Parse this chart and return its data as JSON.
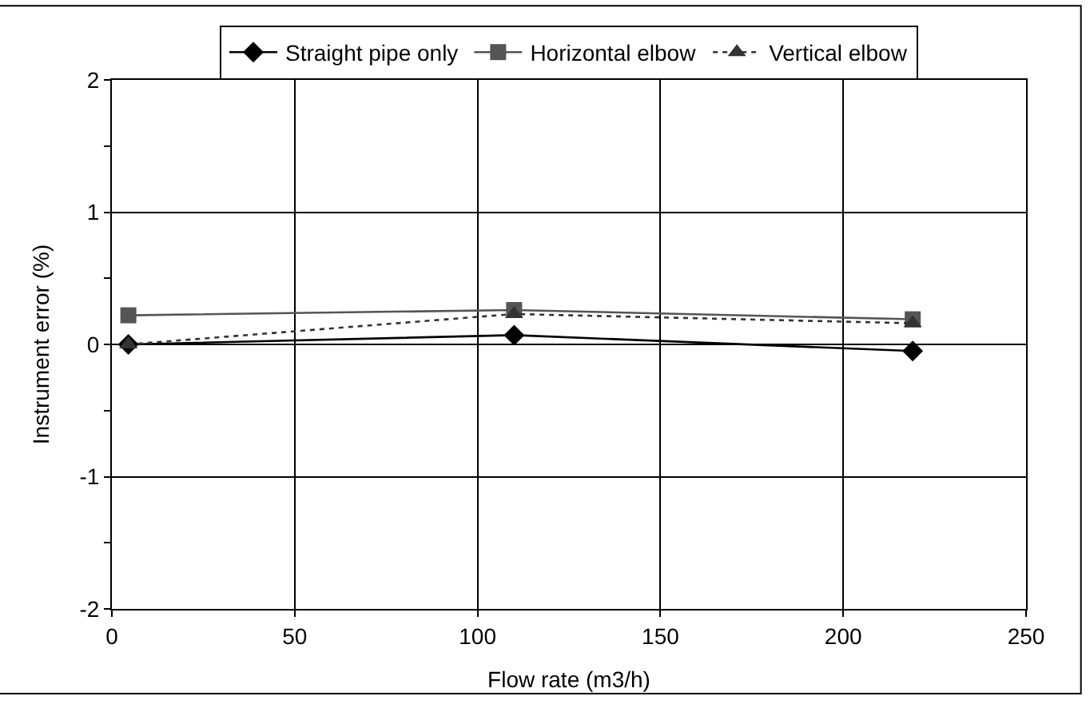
{
  "chart_data": {
    "type": "line",
    "xlabel": "Flow rate (m3/h)",
    "ylabel": "Instrument error (%)",
    "x": [
      4.5,
      110,
      219
    ],
    "series": [
      {
        "name": "Straight pipe only",
        "color": "#000000",
        "marker": "diamond",
        "line_style": "solid",
        "values": [
          0.0,
          0.07,
          -0.05
        ]
      },
      {
        "name": "Horizontal elbow",
        "color": "#555555",
        "marker": "square",
        "line_style": "solid",
        "values": [
          0.22,
          0.26,
          0.19
        ]
      },
      {
        "name": "Vertical elbow",
        "color": "#333333",
        "marker": "triangle",
        "line_style": "dotted",
        "values": [
          0.0,
          0.23,
          0.16
        ]
      }
    ],
    "xlim": [
      0,
      250
    ],
    "xticks": [
      0,
      50,
      100,
      150,
      200,
      250
    ],
    "ylim": [
      -2,
      2
    ],
    "yticks": [
      -2,
      -1,
      0,
      1,
      2
    ],
    "grid": true,
    "legend": "top"
  }
}
